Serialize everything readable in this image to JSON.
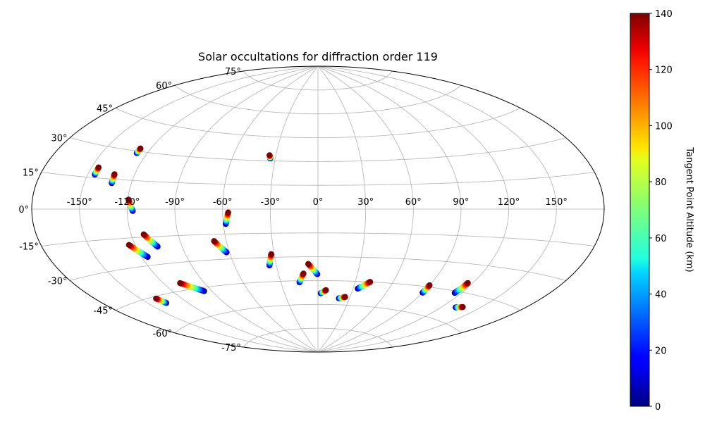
{
  "chart_data": {
    "type": "scatter",
    "projection": "aitoff",
    "title": "Solar occultations for diffraction order 119",
    "x_tick_labels": [
      "-150°",
      "-120°",
      "-90°",
      "-60°",
      "-30°",
      "0°",
      "30°",
      "60°",
      "90°",
      "120°",
      "150°"
    ],
    "x_ticks": [
      -150,
      -120,
      -90,
      -60,
      -30,
      0,
      30,
      60,
      90,
      120,
      150
    ],
    "y_tick_labels": [
      "75°",
      "60°",
      "45°",
      "30°",
      "15°",
      "0°",
      "-15°",
      "-30°",
      "-45°",
      "-60°",
      "-75°"
    ],
    "y_ticks": [
      75,
      60,
      45,
      30,
      15,
      0,
      -15,
      -30,
      -45,
      -60,
      -75
    ],
    "grid": true,
    "colorbar": {
      "label": "Tangent Point Altitude (km)",
      "colormap": "jet",
      "range": [
        0,
        140
      ],
      "tick_labels": [
        "0",
        "20",
        "40",
        "60",
        "80",
        "100",
        "120",
        "140"
      ],
      "ticks": [
        0,
        20,
        40,
        60,
        80,
        100,
        120,
        140
      ]
    },
    "occultations": [
      {
        "lon_start": -145.5,
        "lat_start": 20,
        "lon_end": -145.5,
        "lat_end": 16.5
      },
      {
        "lon_start": -133,
        "lat_start": 17.5,
        "lon_end": -132.5,
        "lat_end": 13
      },
      {
        "lon_start": -127,
        "lat_start": 31.5,
        "lon_end": -127,
        "lat_end": 29
      },
      {
        "lon_start": -34.5,
        "lat_start": 33.5,
        "lon_end": -33.5,
        "lat_end": 31.5
      },
      {
        "lon_start": -119.5,
        "lat_start": 5,
        "lon_end": -116.5,
        "lat_end": -1
      },
      {
        "lon_start": -56.5,
        "lat_start": -2,
        "lon_end": -58.5,
        "lat_end": -9
      },
      {
        "lon_start": -112,
        "lat_start": -13.5,
        "lon_end": -106,
        "lat_end": -20.5
      },
      {
        "lon_start": -124,
        "lat_start": -18.5,
        "lon_end": -116,
        "lat_end": -25.5
      },
      {
        "lon_start": -68,
        "lat_start": -19,
        "lon_end": -62,
        "lat_end": -26
      },
      {
        "lon_start": -32,
        "lat_start": -28,
        "lon_end": -35,
        "lat_end": -35
      },
      {
        "lon_start": -7,
        "lat_start": -34.5,
        "lon_end": -0.5,
        "lat_end": -41
      },
      {
        "lon_start": -11,
        "lat_start": -40.5,
        "lon_end": -15,
        "lat_end": -46
      },
      {
        "lon_start": 7,
        "lat_start": -51,
        "lon_end": 2.5,
        "lat_end": -53
      },
      {
        "lon_start": 25.5,
        "lat_start": -55,
        "lon_end": 20,
        "lat_end": -56
      },
      {
        "lon_start": 42,
        "lat_start": -45,
        "lon_end": 34,
        "lat_end": -49.5
      },
      {
        "lon_start": 90,
        "lat_start": -44,
        "lon_end": 90,
        "lat_end": -48.5
      },
      {
        "lon_start": 116.5,
        "lat_start": -40,
        "lon_end": 115,
        "lat_end": -46
      },
      {
        "lon_start": -108,
        "lat_start": -41,
        "lon_end": -96,
        "lat_end": -47
      },
      {
        "lon_start": -139,
        "lat_start": -46,
        "lon_end": -136.5,
        "lat_end": -49
      },
      {
        "lon_start": 136.5,
        "lat_start": -51.5,
        "lon_end": 131.5,
        "lat_end": -52.5
      }
    ]
  }
}
